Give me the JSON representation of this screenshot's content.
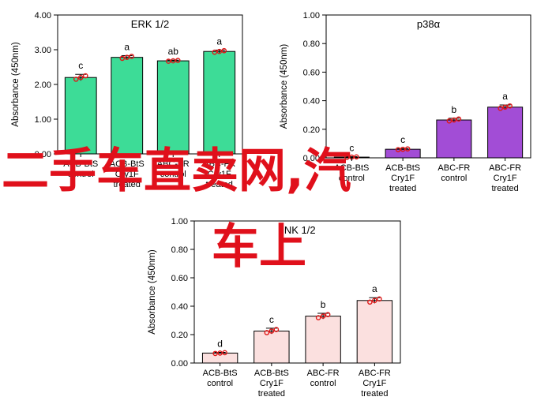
{
  "chart_data": [
    {
      "type": "bar",
      "title": "ERK 1/2",
      "ylabel": "Absorbance (450nm)",
      "xlabel": "",
      "ylim": [
        0,
        4
      ],
      "yticks": [
        "0.00",
        "1.00",
        "2.00",
        "3.00",
        "4.00"
      ],
      "ytick_values": [
        0,
        1,
        2,
        3,
        4
      ],
      "categories": [
        [
          "ACB-BtS",
          "control"
        ],
        [
          "ACB-BtS",
          "Cry1F",
          "treated"
        ],
        [
          "ABC-FR",
          "control"
        ],
        [
          "ABC-FR",
          "Cry1F",
          "treated"
        ]
      ],
      "values": [
        2.2,
        2.78,
        2.68,
        2.95
      ],
      "errors": [
        0.09,
        0.05,
        0.02,
        0.04
      ],
      "letters": [
        "c",
        "a",
        "ab",
        "a"
      ],
      "bar_color": "#3ddc97",
      "grid": false
    },
    {
      "type": "bar",
      "title": "p38α",
      "ylabel": "Absorbance (450nm)",
      "xlabel": "",
      "ylim": [
        0,
        1
      ],
      "yticks": [
        "0.00",
        "0.20",
        "0.40",
        "0.60",
        "0.80",
        "1.00"
      ],
      "ytick_values": [
        0,
        0.2,
        0.4,
        0.6,
        0.8,
        1.0
      ],
      "categories": [
        [
          "ACB-BtS",
          "control"
        ],
        [
          "ACB-BtS",
          "Cry1F",
          "treated"
        ],
        [
          "ABC-FR",
          "control"
        ],
        [
          "ABC-FR",
          "Cry1F",
          "treated"
        ]
      ],
      "values": [
        0.005,
        0.06,
        0.265,
        0.355
      ],
      "errors": [
        0.003,
        0.005,
        0.012,
        0.015
      ],
      "letters": [
        "c",
        "c",
        "b",
        "a"
      ],
      "bar_color": "#a24dd6",
      "grid": false
    },
    {
      "type": "bar",
      "title": "JNK 1/2",
      "ylabel": "Absorbance (450nm)",
      "xlabel": "",
      "ylim": [
        0,
        1
      ],
      "yticks": [
        "0.00",
        "0.20",
        "0.40",
        "0.60",
        "0.80",
        "1.00"
      ],
      "ytick_values": [
        0,
        0.2,
        0.4,
        0.6,
        0.8,
        1.0
      ],
      "categories": [
        [
          "ACB-BtS",
          "control"
        ],
        [
          "ACB-BtS",
          "Cry1F",
          "treated"
        ],
        [
          "ABC-FR",
          "control"
        ],
        [
          "ABC-FR",
          "Cry1F",
          "treated"
        ]
      ],
      "values": [
        0.07,
        0.225,
        0.33,
        0.44
      ],
      "errors": [
        0.005,
        0.02,
        0.02,
        0.02
      ],
      "letters": [
        "d",
        "c",
        "b",
        "a"
      ],
      "bar_color": "#fbe0df",
      "grid": false
    }
  ],
  "overlay_text": {
    "line_1": "二手车直卖网,汽",
    "line_2": "车上"
  },
  "colors": {
    "overlay": "#e0101b",
    "replicate_point": "#e01818",
    "axis": "#000000"
  }
}
